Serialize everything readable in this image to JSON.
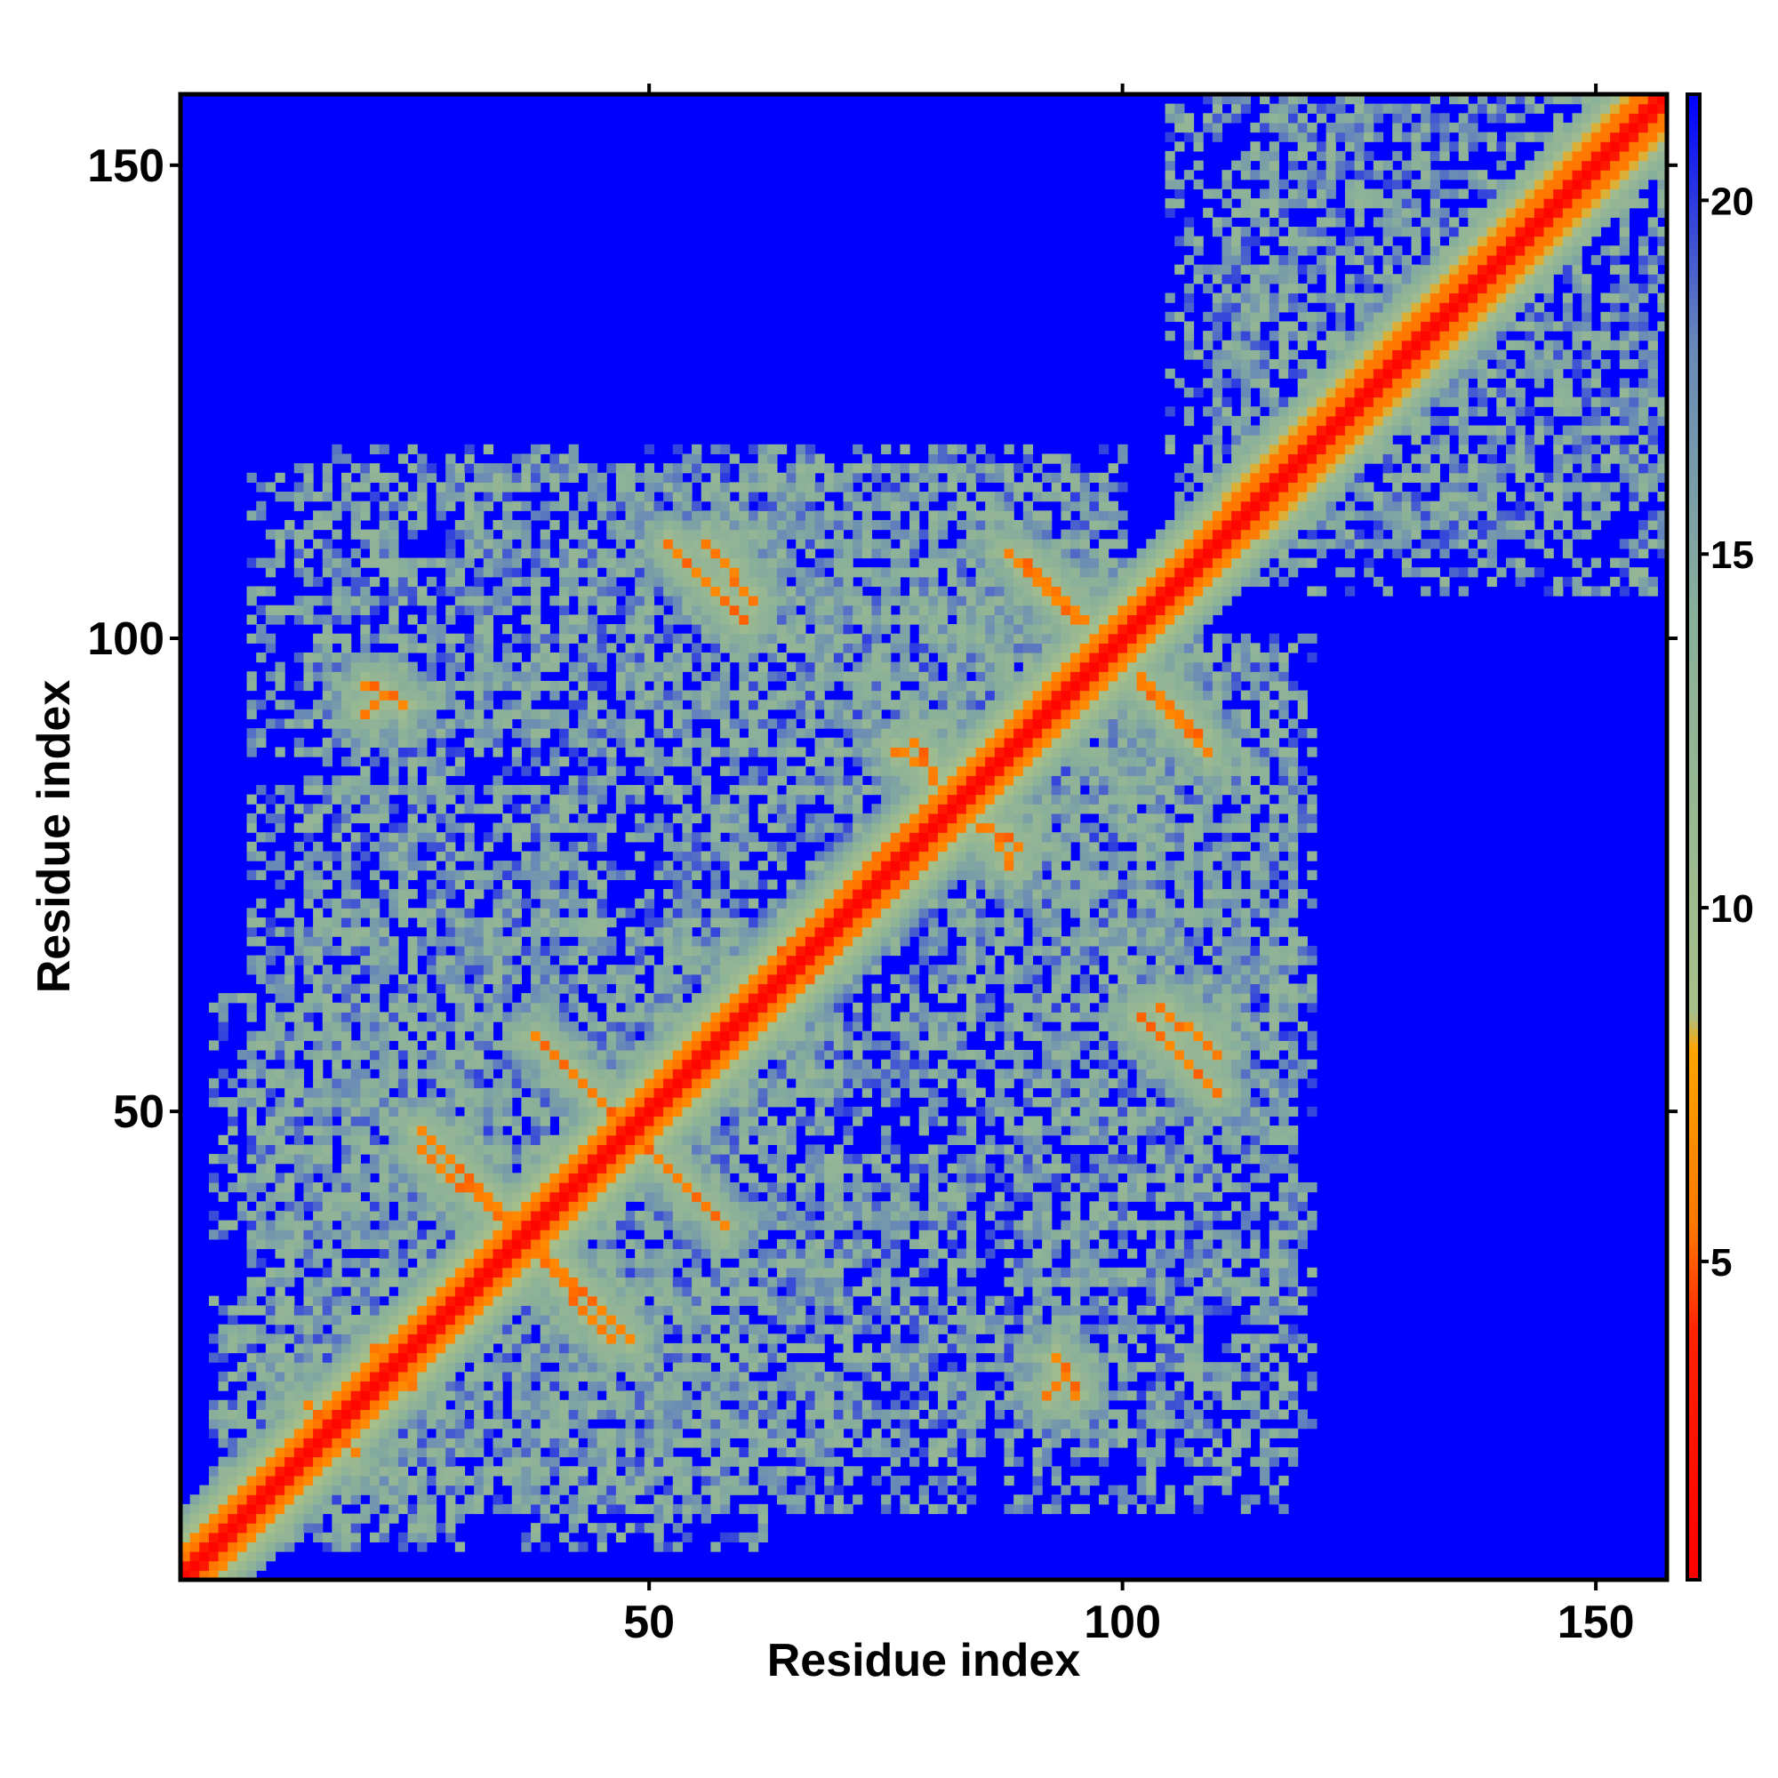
{
  "chart_data": {
    "type": "heatmap",
    "title": "",
    "xlabel": "Residue index",
    "ylabel": "Residue index",
    "n_residues": 157,
    "xlim": [
      1,
      157
    ],
    "ylim": [
      1,
      157
    ],
    "x_ticks": [
      50,
      100,
      150
    ],
    "y_ticks": [
      50,
      100,
      150
    ],
    "colorbar": {
      "min": 0.5,
      "max": 21.5,
      "ticks": [
        5,
        10,
        15,
        20
      ]
    },
    "colorscale": [
      {
        "value": 0.5,
        "color": "#ff0000"
      },
      {
        "value": 4.0,
        "color": "#ff2200"
      },
      {
        "value": 5.5,
        "color": "#ff7700"
      },
      {
        "value": 8.0,
        "color": "#ffa500"
      },
      {
        "value": 8.5,
        "color": "#a8c08a"
      },
      {
        "value": 14.0,
        "color": "#8ab09a"
      },
      {
        "value": 18.0,
        "color": "#6888b8"
      },
      {
        "value": 21.5,
        "color": "#0000ff"
      }
    ],
    "background_color": "#0000ff",
    "contact_cutoff": 20,
    "contact_bands": [
      {
        "name": "diagonal",
        "i": [
          1,
          157
        ],
        "j": [
          1,
          157
        ]
      },
      {
        "i": [
          26,
          36
        ],
        "j": [
          48,
          38
        ],
        "kind": "antiparallel"
      },
      {
        "i": [
          38,
          48
        ],
        "j": [
          58,
          48
        ],
        "kind": "antiparallel"
      },
      {
        "i": [
          38,
          46
        ],
        "j": [
          35,
          26
        ],
        "kind": "antiparallel"
      },
      {
        "i": [
          15,
          19
        ],
        "j": [
          18,
          14
        ],
        "kind": "spot"
      },
      {
        "i": [
          21,
          26
        ],
        "j": [
          25,
          24
        ],
        "kind": "spot"
      },
      {
        "i": [
          56,
          61
        ],
        "j": [
          110,
          104
        ],
        "kind": "antiparallel"
      },
      {
        "i": [
          88,
          95
        ],
        "j": [
          109,
          102
        ],
        "kind": "antiparallel"
      },
      {
        "i": [
          102,
          108
        ],
        "j": [
          96,
          90
        ],
        "kind": "antiparallel"
      },
      {
        "i": [
          102,
          110
        ],
        "j": [
          60,
          52
        ],
        "kind": "antiparallel"
      },
      {
        "i": [
          64,
          80
        ],
        "j": [
          67,
          83
        ],
        "kind": "parallel"
      },
      {
        "i": [
          20,
          24
        ],
        "j": [
          95,
          93
        ],
        "kind": "spot"
      },
      {
        "i": [
          92,
          94
        ],
        "j": [
          20,
          22
        ],
        "kind": "spot"
      },
      {
        "i": [
          76,
          80
        ],
        "j": [
          88,
          86
        ],
        "kind": "spot"
      },
      {
        "i": [
          85,
          89
        ],
        "j": [
          80,
          78
        ],
        "kind": "spot"
      }
    ],
    "contact_regions": [
      {
        "i": [
          8,
          50
        ],
        "j": [
          88,
          118
        ]
      },
      {
        "i": [
          48,
          88
        ],
        "j": [
          88,
          118
        ]
      },
      {
        "i": [
          4,
          30
        ],
        "j": [
          5,
          30
        ]
      },
      {
        "i": [
          8,
          70
        ],
        "j": [
          8,
          60
        ]
      },
      {
        "i": [
          36,
          62
        ],
        "j": [
          4,
          34
        ]
      },
      {
        "i": [
          14,
          60
        ],
        "j": [
          60,
          84
        ]
      },
      {
        "i": [
          52,
          70
        ],
        "j": [
          50,
          84
        ]
      },
      {
        "i": [
          58,
          110
        ],
        "j": [
          80,
          100
        ]
      },
      {
        "i": [
          84,
          120
        ],
        "j": [
          62,
          100
        ]
      },
      {
        "i": [
          84,
          120
        ],
        "j": [
          14,
          62
        ]
      },
      {
        "i": [
          64,
          84
        ],
        "j": [
          8,
          44
        ]
      },
      {
        "i": [
          60,
          100
        ],
        "j": [
          100,
          118
        ]
      },
      {
        "i": [
          110,
          157
        ],
        "j": [
          105,
          157
        ]
      }
    ]
  }
}
